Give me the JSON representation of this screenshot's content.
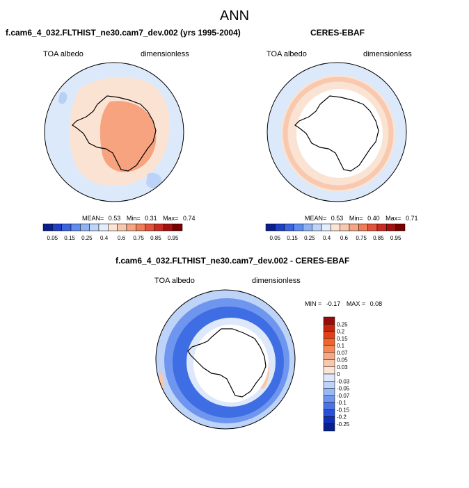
{
  "main_title": "ANN",
  "panels": [
    {
      "title": "f.cam6_4_032.FLTHIST_ne30.cam7_dev.002 (yrs 1995-2004)",
      "variable": "TOA albedo",
      "units": "dimensionless",
      "stats": {
        "mean_label": "MEAN=",
        "mean": "0.53",
        "min_label": "Min=",
        "min": "0.31",
        "max_label": "Max=",
        "max": "0.74"
      }
    },
    {
      "title": "CERES-EBAF",
      "variable": "TOA albedo",
      "units": "dimensionless",
      "stats": {
        "mean_label": "MEAN=",
        "mean": "0.53",
        "min_label": "Min=",
        "min": "0.40",
        "max_label": "Max=",
        "max": "0.71"
      }
    },
    {
      "title": "f.cam6_4_032.FLTHIST_ne30.cam7_dev.002 - CERES-EBAF",
      "variable": "TOA albedo",
      "units": "dimensionless",
      "stats": {
        "min_label": "MIN =",
        "min": "-0.17",
        "max_label": "MAX =",
        "max": "0.08"
      }
    }
  ],
  "colorbar_abs": {
    "labels": [
      "0.05",
      "0.15",
      "0.25",
      "0.4",
      "0.6",
      "0.75",
      "0.85",
      "0.95"
    ],
    "colors": [
      "#0a1f8f",
      "#1f3fc4",
      "#3a64e0",
      "#5e8cf0",
      "#8fb4f5",
      "#bed4f8",
      "#e3edfb",
      "#fbe4d6",
      "#f8c9ae",
      "#f4a583",
      "#ee7d58",
      "#e2523a",
      "#c92b20",
      "#a3110f",
      "#7a0000"
    ]
  },
  "colorbar_diff": {
    "labels": [
      "0.25",
      "0.2",
      "0.15",
      "0.1",
      "0.07",
      "0.05",
      "0.03",
      "0",
      "-0.03",
      "-0.05",
      "-0.07",
      "-0.1",
      "-0.15",
      "-0.2",
      "-0.25"
    ],
    "colors": [
      "#9b0a0a",
      "#c4250f",
      "#e04117",
      "#f0652c",
      "#f5885a",
      "#f6a884",
      "#f8c8ac",
      "#fbe5d6",
      "#dde9fb",
      "#bed3f8",
      "#98b9f4",
      "#6f96ee",
      "#4a74e6",
      "#2a50d8",
      "#1030b8",
      "#08208a"
    ]
  },
  "colors": {
    "ocean_light": "#dbe9fb",
    "peach": "#fbe3d4",
    "orange": "#f7a37f",
    "diff_blue": "#3f6de4",
    "diff_dark": "#1e48d6"
  }
}
